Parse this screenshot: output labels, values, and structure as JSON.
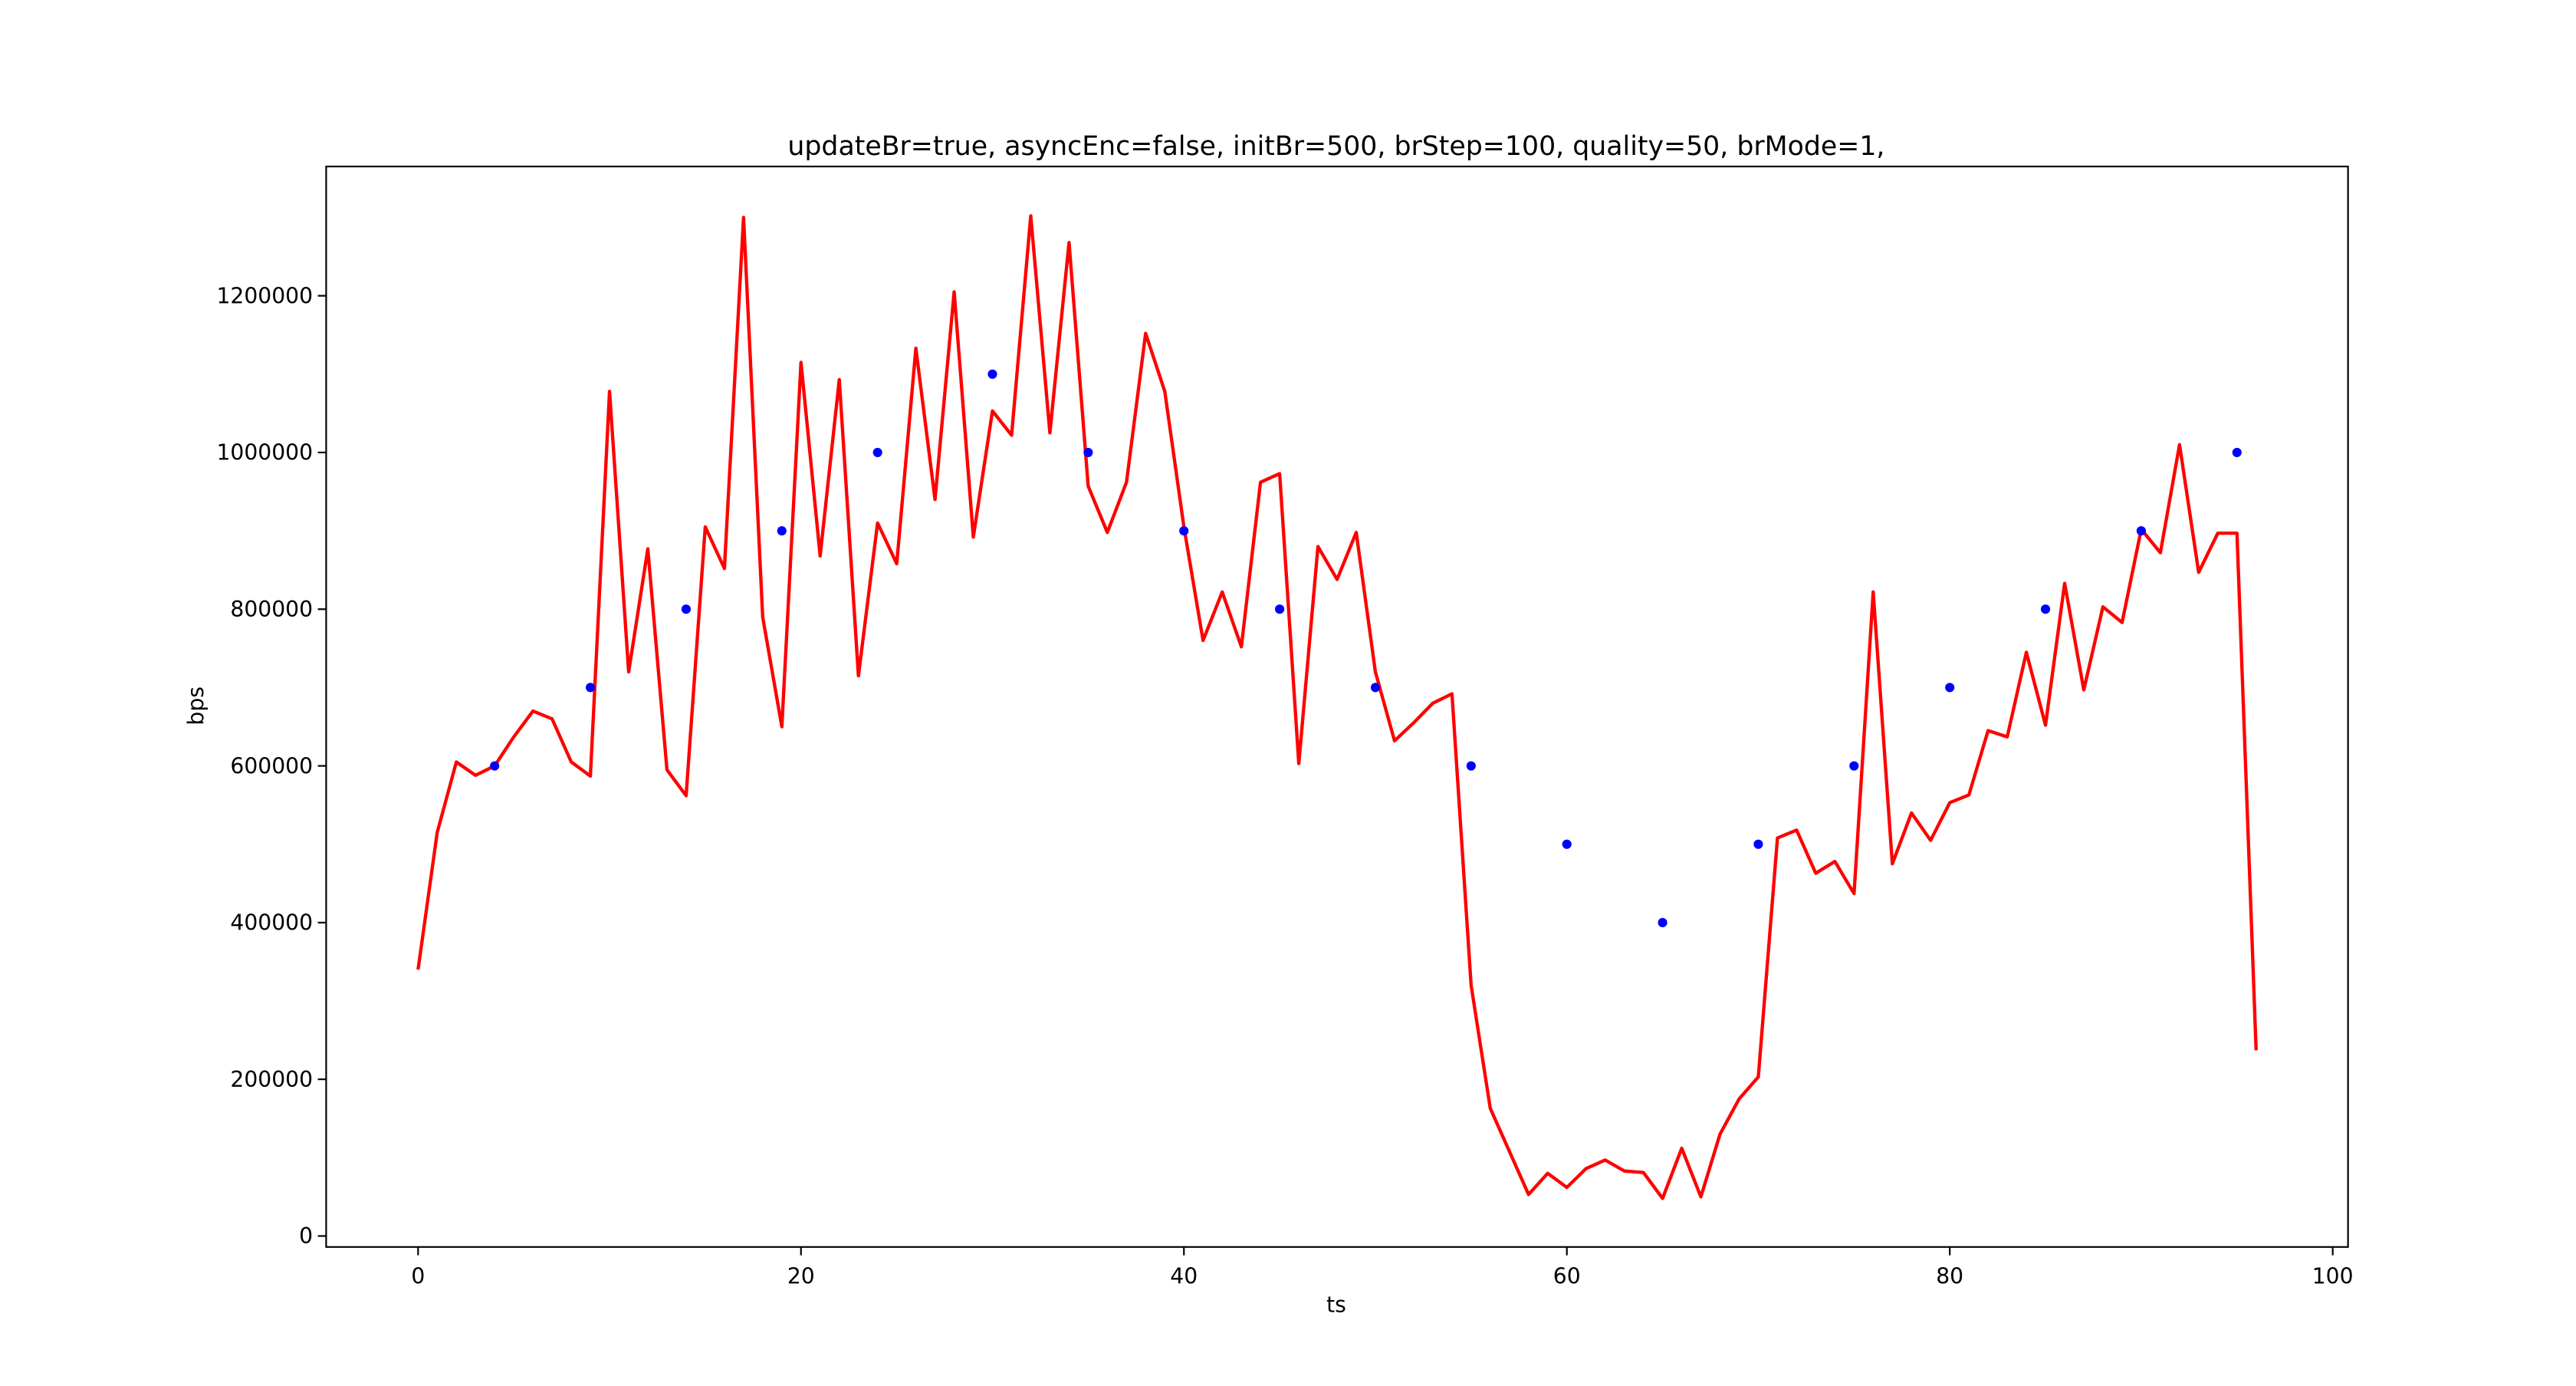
{
  "chart_data": {
    "type": "line",
    "title": "updateBr=true, asyncEnc=false, initBr=500, brStep=100, quality=50, brMode=1,",
    "x_label": "ts",
    "y_label": "bps",
    "xlim": [
      -4.8,
      100.8
    ],
    "xticks": [
      0,
      20,
      40,
      60,
      80,
      100
    ],
    "ylim": [
      -14000,
      1365000
    ],
    "yticks": [
      0,
      200000,
      400000,
      600000,
      800000,
      1000000,
      1200000
    ],
    "grid": false,
    "series": [
      {
        "kind": "line",
        "color": "#ff0000",
        "x": [
          0,
          1,
          2,
          3,
          4,
          5,
          6,
          7,
          8,
          9,
          10,
          11,
          12,
          13,
          14,
          15,
          16,
          17,
          18,
          19,
          20,
          21,
          22,
          23,
          24,
          25,
          26,
          27,
          28,
          29,
          30,
          31,
          32,
          33,
          34,
          35,
          36,
          37,
          38,
          39,
          40,
          41,
          42,
          43,
          44,
          45,
          46,
          47,
          48,
          49,
          50,
          51,
          52,
          53,
          54,
          55,
          56,
          57,
          58,
          59,
          60,
          61,
          62,
          63,
          64,
          65,
          66,
          67,
          68,
          69,
          70,
          71,
          72,
          73,
          74,
          75,
          76,
          77,
          78,
          79,
          80,
          81,
          82,
          83,
          84,
          85,
          86,
          87,
          88,
          89,
          90,
          91,
          92,
          93,
          94,
          95,
          96
        ],
        "values": [
          340000,
          515000,
          605000,
          588000,
          600000,
          637000,
          670000,
          660000,
          605000,
          587000,
          1078000,
          720000,
          877000,
          595000,
          562000,
          905000,
          852000,
          1300000,
          790000,
          650000,
          1115000,
          868000,
          1093000,
          715000,
          910000,
          858000,
          1133000,
          940000,
          1205000,
          892000,
          1053000,
          1022000,
          1302000,
          1025000,
          1268000,
          957000,
          898000,
          962000,
          1152000,
          1078000,
          905000,
          760000,
          822000,
          752000,
          962000,
          973000,
          603000,
          880000,
          838000,
          898000,
          720000,
          632000,
          655000,
          680000,
          692000,
          320000,
          163000,
          108000,
          53000,
          80000,
          62000,
          86000,
          97000,
          83000,
          81000,
          48000,
          112000,
          50000,
          130000,
          175000,
          203000,
          508000,
          518000,
          463000,
          478000,
          437000,
          822000,
          475000,
          540000,
          505000,
          553000,
          563000,
          645000,
          637000,
          745000,
          652000,
          833000,
          697000,
          803000,
          783000,
          902000,
          872000,
          1010000,
          847000,
          897000,
          897000,
          237000
        ]
      },
      {
        "kind": "scatter",
        "color": "#0000ff",
        "x": [
          4,
          9,
          14,
          19,
          24,
          30,
          35,
          40,
          45,
          50,
          55,
          60,
          65,
          70,
          75,
          80,
          85,
          90,
          95
        ],
        "values": [
          600000,
          700000,
          800000,
          900000,
          1000000,
          1100000,
          1000000,
          900000,
          800000,
          700000,
          600000,
          500000,
          400000,
          500000,
          600000,
          700000,
          800000,
          900000,
          1000000
        ]
      }
    ]
  }
}
